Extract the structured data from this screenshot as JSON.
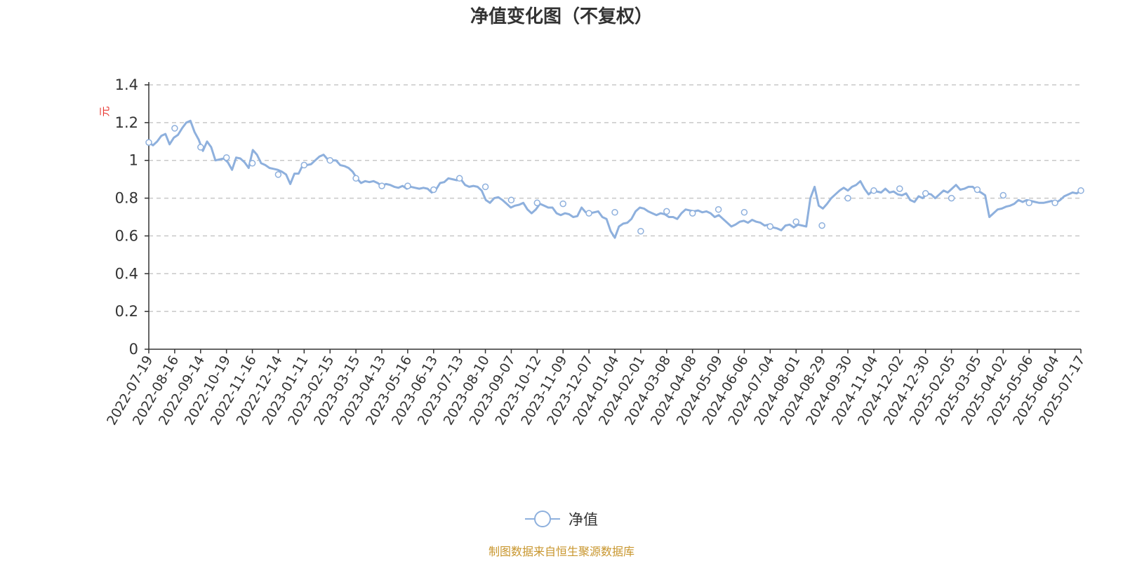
{
  "chart_data": {
    "type": "line",
    "title": "净值变化图（不复权）",
    "ylabel": "元",
    "ylim": [
      0,
      1.4
    ],
    "yticks": [
      0,
      0.2,
      0.4,
      0.6,
      0.8,
      1,
      1.2,
      1.4
    ],
    "grid": true,
    "legend_position": "bottom",
    "x_tick_labels": [
      "2022-07-19",
      "2022-08-16",
      "2022-09-14",
      "2022-10-19",
      "2022-11-16",
      "2022-12-14",
      "2023-01-11",
      "2023-02-15",
      "2023-03-15",
      "2023-04-13",
      "2023-05-16",
      "2023-06-13",
      "2023-07-13",
      "2023-08-10",
      "2023-09-07",
      "2023-10-12",
      "2023-11-09",
      "2023-12-07",
      "2024-01-04",
      "2024-02-01",
      "2024-03-08",
      "2024-04-08",
      "2024-05-09",
      "2024-06-06",
      "2024-07-04",
      "2024-08-01",
      "2024-08-29",
      "2024-09-30",
      "2024-11-04",
      "2024-12-02",
      "2024-12-30",
      "2025-02-05",
      "2025-03-05",
      "2025-04-02",
      "2025-05-06",
      "2025-06-04",
      "2025-07-17"
    ],
    "series": [
      {
        "name": "净值",
        "color": "#8eb0dd",
        "marker_values": [
          1.095,
          1.17,
          1.07,
          1.015,
          0.985,
          0.925,
          0.975,
          1.0,
          0.905,
          0.865,
          0.865,
          0.845,
          0.905,
          0.86,
          0.79,
          0.775,
          0.77,
          0.72,
          0.725,
          0.625,
          0.73,
          0.72,
          0.74,
          0.725,
          0.65,
          0.675,
          0.655,
          0.8,
          0.84,
          0.85,
          0.825,
          0.8,
          0.845,
          0.815,
          0.775,
          0.775,
          0.84
        ],
        "values": [
          1.095,
          1.08,
          1.1,
          1.13,
          1.14,
          1.085,
          1.12,
          1.135,
          1.17,
          1.2,
          1.21,
          1.15,
          1.11,
          1.05,
          1.1,
          1.07,
          1.0,
          1.005,
          1.01,
          0.99,
          0.95,
          1.015,
          1.01,
          0.99,
          0.96,
          1.055,
          1.03,
          0.985,
          0.975,
          0.96,
          0.955,
          0.95,
          0.94,
          0.925,
          0.875,
          0.93,
          0.93,
          0.975,
          0.975,
          0.98,
          1.0,
          1.02,
          1.03,
          1.005,
          1.0,
          1.0,
          0.975,
          0.97,
          0.96,
          0.94,
          0.905,
          0.88,
          0.89,
          0.885,
          0.89,
          0.88,
          0.865,
          0.875,
          0.87,
          0.86,
          0.855,
          0.865,
          0.85,
          0.86,
          0.855,
          0.85,
          0.855,
          0.85,
          0.83,
          0.845,
          0.88,
          0.885,
          0.905,
          0.9,
          0.895,
          0.9,
          0.87,
          0.86,
          0.865,
          0.86,
          0.84,
          0.79,
          0.775,
          0.8,
          0.805,
          0.79,
          0.77,
          0.75,
          0.76,
          0.765,
          0.775,
          0.74,
          0.72,
          0.74,
          0.77,
          0.76,
          0.75,
          0.75,
          0.72,
          0.71,
          0.72,
          0.715,
          0.7,
          0.705,
          0.75,
          0.725,
          0.72,
          0.725,
          0.73,
          0.7,
          0.69,
          0.625,
          0.59,
          0.65,
          0.665,
          0.67,
          0.69,
          0.73,
          0.75,
          0.745,
          0.73,
          0.72,
          0.71,
          0.72,
          0.715,
          0.7,
          0.7,
          0.69,
          0.72,
          0.74,
          0.735,
          0.73,
          0.735,
          0.725,
          0.73,
          0.72,
          0.7,
          0.71,
          0.69,
          0.67,
          0.65,
          0.66,
          0.675,
          0.68,
          0.67,
          0.685,
          0.675,
          0.67,
          0.655,
          0.66,
          0.645,
          0.64,
          0.63,
          0.655,
          0.66,
          0.645,
          0.66,
          0.655,
          0.65,
          0.8,
          0.86,
          0.76,
          0.745,
          0.77,
          0.8,
          0.82,
          0.84,
          0.855,
          0.84,
          0.86,
          0.87,
          0.89,
          0.85,
          0.82,
          0.84,
          0.835,
          0.83,
          0.85,
          0.83,
          0.835,
          0.82,
          0.815,
          0.825,
          0.79,
          0.78,
          0.81,
          0.8,
          0.825,
          0.82,
          0.8,
          0.82,
          0.84,
          0.83,
          0.85,
          0.87,
          0.845,
          0.85,
          0.86,
          0.86,
          0.84,
          0.83,
          0.815,
          0.7,
          0.72,
          0.74,
          0.745,
          0.755,
          0.76,
          0.77,
          0.79,
          0.78,
          0.79,
          0.785,
          0.78,
          0.775,
          0.775,
          0.78,
          0.785,
          0.775,
          0.79,
          0.81,
          0.82,
          0.83,
          0.825,
          0.84
        ]
      }
    ],
    "source_note": "制图数据来自恒生聚源数据库"
  }
}
